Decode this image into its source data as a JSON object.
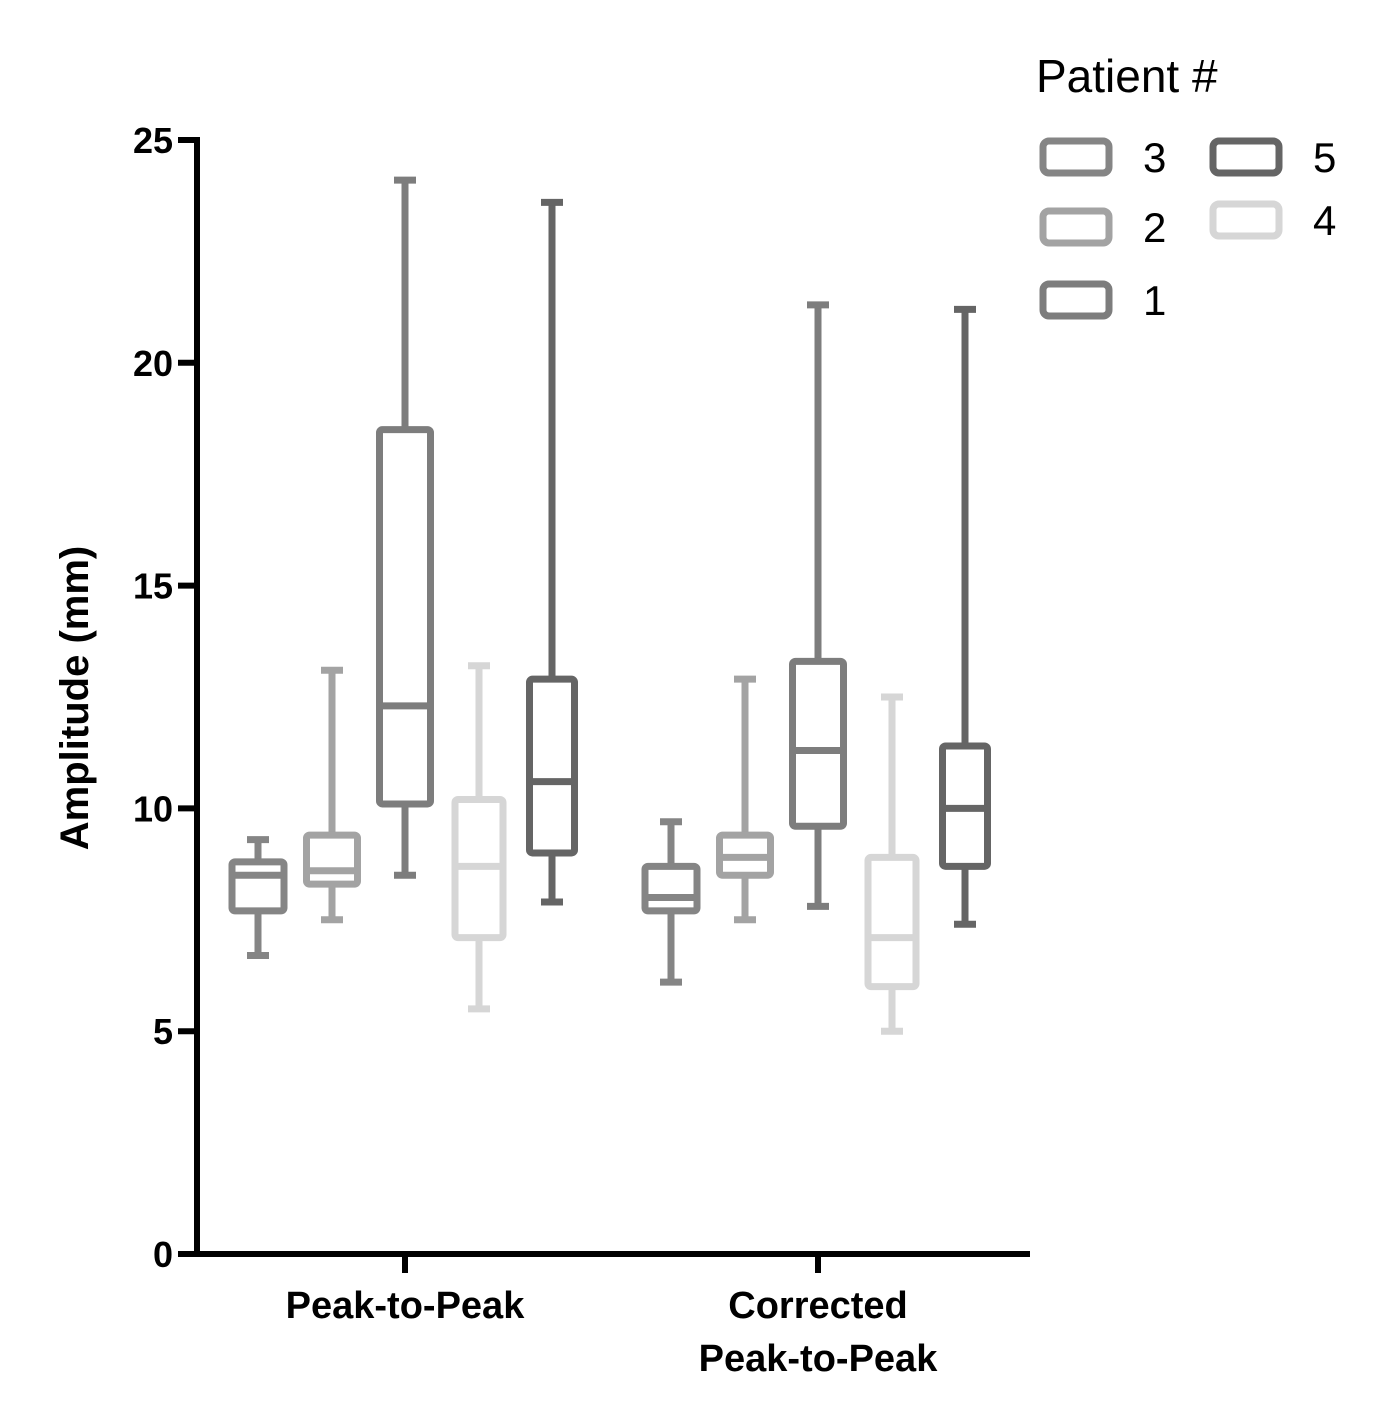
{
  "chart_data": {
    "type": "boxplot",
    "title": "",
    "xlabel": "",
    "ylabel": "Amplitude (mm)",
    "ylim": [
      0,
      25
    ],
    "yticks": [
      0,
      5,
      10,
      15,
      20,
      25
    ],
    "categories": [
      {
        "lines": [
          "Peak-to-Peak"
        ]
      },
      {
        "lines": [
          "Corrected",
          "Peak-to-Peak"
        ]
      }
    ],
    "legend": {
      "title": "Patient #",
      "position": "top-right",
      "entries": [
        {
          "label": "3",
          "series_index": 0
        },
        {
          "label": "2",
          "series_index": 1
        },
        {
          "label": "1",
          "series_index": 2
        },
        {
          "label": "5",
          "series_index": 4
        },
        {
          "label": "4",
          "series_index": 3
        }
      ]
    },
    "series": [
      {
        "name": "3",
        "color": "#858585",
        "boxes": [
          {
            "min": 6.7,
            "q1": 7.7,
            "median": 8.5,
            "q3": 8.8,
            "max": 9.3
          },
          {
            "min": 6.1,
            "q1": 7.7,
            "median": 8.0,
            "q3": 8.7,
            "max": 9.7
          }
        ]
      },
      {
        "name": "2",
        "color": "#a3a3a3",
        "boxes": [
          {
            "min": 7.5,
            "q1": 8.3,
            "median": 8.6,
            "q3": 9.4,
            "max": 13.1
          },
          {
            "min": 7.5,
            "q1": 8.5,
            "median": 8.9,
            "q3": 9.4,
            "max": 12.9
          }
        ]
      },
      {
        "name": "1",
        "color": "#7d7d7d",
        "boxes": [
          {
            "min": 8.5,
            "q1": 10.1,
            "median": 12.3,
            "q3": 18.5,
            "max": 24.1
          },
          {
            "min": 7.8,
            "q1": 9.6,
            "median": 11.3,
            "q3": 13.3,
            "max": 21.3
          }
        ]
      },
      {
        "name": "4",
        "color": "#d6d6d6",
        "boxes": [
          {
            "min": 5.5,
            "q1": 7.1,
            "median": 8.7,
            "q3": 10.2,
            "max": 13.2
          },
          {
            "min": 5.0,
            "q1": 6.0,
            "median": 7.1,
            "q3": 8.9,
            "max": 12.5
          }
        ]
      },
      {
        "name": "5",
        "color": "#656565",
        "boxes": [
          {
            "min": 7.9,
            "q1": 9.0,
            "median": 10.6,
            "q3": 12.9,
            "max": 23.6
          },
          {
            "min": 7.4,
            "q1": 8.7,
            "median": 10.0,
            "q3": 11.4,
            "max": 21.2
          }
        ]
      }
    ]
  }
}
